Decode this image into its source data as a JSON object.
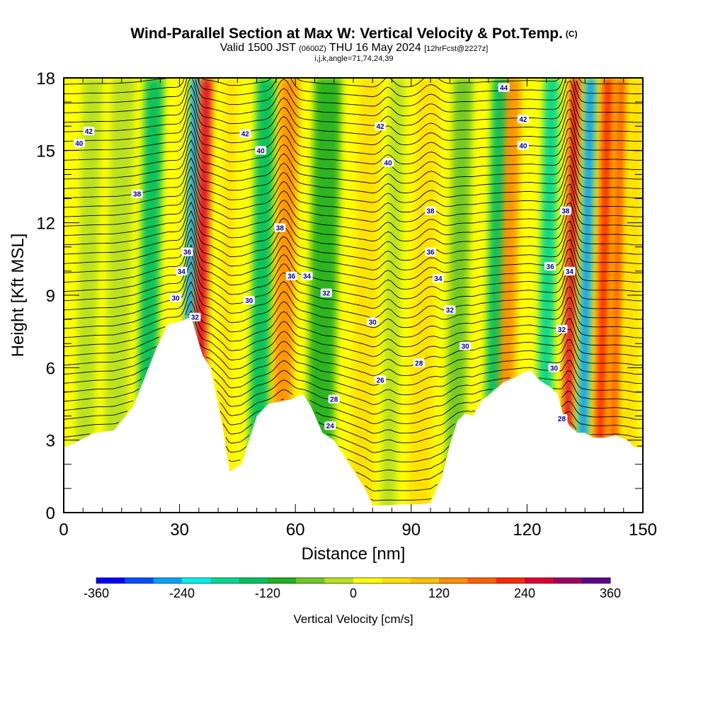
{
  "header": {
    "title": "Wind-Parallel Section at Max W: Vertical Velocity & Pot.Temp.",
    "copyright": "(C)",
    "valid_prefix": "Valid 1500 JST",
    "valid_zulu": "(0600Z)",
    "valid_date": "THU 16 May 2024",
    "forecast_tag": "[12hrFcst@2227z]",
    "indices": "i,j,k,angle=71,74,24,39"
  },
  "chart_data": {
    "type": "heatmap",
    "title": "Wind-Parallel Section at Max W: Vertical Velocity & Pot.Temp.",
    "xlabel": "Distance [nm]",
    "ylabel": "Height [Kft MSL]",
    "xlim": [
      0,
      150
    ],
    "ylim": [
      0,
      18
    ],
    "x_ticks": [
      "0",
      "30",
      "60",
      "90",
      "120",
      "150"
    ],
    "y_ticks": [
      "0",
      "3",
      "6",
      "9",
      "12",
      "15",
      "18"
    ],
    "colorbar": {
      "label": "Vertical Velocity [cm/s]",
      "range": [
        -360,
        360
      ],
      "tick_labels": [
        "-360",
        "-240",
        "-120",
        "0",
        "120",
        "240",
        "360"
      ],
      "colors": [
        "#0000ff",
        "#0050ff",
        "#00a0ff",
        "#00f0f0",
        "#00d890",
        "#00c060",
        "#20b020",
        "#70c828",
        "#b8e020",
        "#ffff00",
        "#ffe000",
        "#ffc000",
        "#ff9000",
        "#ff6000",
        "#ff2800",
        "#e00030",
        "#a00060",
        "#600090"
      ]
    },
    "terrain_top_kft": [
      [
        0,
        2.7
      ],
      [
        3,
        2.9
      ],
      [
        8,
        3.3
      ],
      [
        13,
        3.4
      ],
      [
        16,
        4.0
      ],
      [
        18,
        4.4
      ],
      [
        20,
        5.2
      ],
      [
        22,
        6.0
      ],
      [
        24,
        6.8
      ],
      [
        27,
        7.8
      ],
      [
        30,
        7.9
      ],
      [
        33,
        8.1
      ],
      [
        35,
        7.0
      ],
      [
        36,
        6.5
      ],
      [
        38,
        6.0
      ],
      [
        41,
        3.7
      ],
      [
        43,
        1.7
      ],
      [
        46,
        2.0
      ],
      [
        48,
        3.0
      ],
      [
        50,
        4.0
      ],
      [
        53,
        4.5
      ],
      [
        56,
        4.6
      ],
      [
        59,
        4.7
      ],
      [
        62,
        4.9
      ],
      [
        64,
        4.4
      ],
      [
        67,
        3.3
      ],
      [
        70,
        3.0
      ],
      [
        74,
        2.0
      ],
      [
        78,
        1.0
      ],
      [
        80,
        0.3
      ],
      [
        84,
        0.3
      ],
      [
        88,
        0.35
      ],
      [
        92,
        0.35
      ],
      [
        95,
        0.4
      ],
      [
        98,
        1.5
      ],
      [
        100,
        2.8
      ],
      [
        102,
        3.8
      ],
      [
        104,
        4.1
      ],
      [
        106,
        4.0
      ],
      [
        108,
        4.6
      ],
      [
        111,
        5.0
      ],
      [
        114,
        5.4
      ],
      [
        117,
        5.6
      ],
      [
        119,
        5.8
      ],
      [
        121,
        5.9
      ],
      [
        123,
        5.5
      ],
      [
        126,
        5.2
      ],
      [
        128,
        4.9
      ],
      [
        129,
        4.2
      ],
      [
        131,
        3.6
      ],
      [
        133,
        3.3
      ],
      [
        135,
        3.3
      ],
      [
        137,
        3.1
      ],
      [
        140,
        3.1
      ],
      [
        143,
        3.2
      ],
      [
        146,
        3.0
      ],
      [
        148,
        2.7
      ],
      [
        150,
        2.7
      ]
    ],
    "vertical_velocity_bands": [
      {
        "x": 5,
        "w": 5,
        "value": -20
      },
      {
        "x": 13,
        "w": 6,
        "value": -40
      },
      {
        "x": 21,
        "w": 5,
        "value": -140
      },
      {
        "x": 27,
        "w": 3,
        "value": 20
      },
      {
        "x": 31.5,
        "w": 2.5,
        "value": -280
      },
      {
        "x": 34.5,
        "w": 3,
        "value": 260
      },
      {
        "x": 41,
        "w": 3,
        "value": 40
      },
      {
        "x": 50,
        "w": 5,
        "value": -160
      },
      {
        "x": 56,
        "w": 5,
        "value": 150
      },
      {
        "x": 66,
        "w": 7,
        "value": -120
      },
      {
        "x": 77,
        "w": 6,
        "value": 60
      },
      {
        "x": 84,
        "w": 4,
        "value": -40
      },
      {
        "x": 92,
        "w": 6,
        "value": 60
      },
      {
        "x": 101,
        "w": 5,
        "value": -80
      },
      {
        "x": 111,
        "w": 5,
        "value": -160
      },
      {
        "x": 114,
        "w": 4,
        "value": 150
      },
      {
        "x": 124,
        "w": 4,
        "value": -180
      },
      {
        "x": 130,
        "w": 2.5,
        "value": 270
      },
      {
        "x": 134,
        "w": 3,
        "value": -270
      },
      {
        "x": 138.5,
        "w": 3,
        "value": 230
      },
      {
        "x": 142,
        "w": 3,
        "value": 160
      },
      {
        "x": 146,
        "w": 4,
        "value": 40
      }
    ],
    "theta_contours": {
      "label_values": [
        "24",
        "26",
        "28",
        "30",
        "32",
        "34",
        "36",
        "38",
        "40",
        "42",
        "44"
      ],
      "labels": [
        {
          "text": "42",
          "x": 6.5,
          "y": 15.8
        },
        {
          "text": "40",
          "x": 4,
          "y": 15.3
        },
        {
          "text": "38",
          "x": 19,
          "y": 13.2
        },
        {
          "text": "36",
          "x": 32,
          "y": 10.8
        },
        {
          "text": "34",
          "x": 30.5,
          "y": 10.0
        },
        {
          "text": "30",
          "x": 29,
          "y": 8.9
        },
        {
          "text": "32",
          "x": 34,
          "y": 8.1
        },
        {
          "text": "42",
          "x": 47,
          "y": 15.7
        },
        {
          "text": "40",
          "x": 51,
          "y": 15.0
        },
        {
          "text": "38",
          "x": 56,
          "y": 11.8
        },
        {
          "text": "36",
          "x": 59,
          "y": 9.8
        },
        {
          "text": "34",
          "x": 63,
          "y": 9.8
        },
        {
          "text": "32",
          "x": 68,
          "y": 9.1
        },
        {
          "text": "30",
          "x": 48,
          "y": 8.8
        },
        {
          "text": "42",
          "x": 82,
          "y": 16.0
        },
        {
          "text": "40",
          "x": 84,
          "y": 14.5
        },
        {
          "text": "38",
          "x": 95,
          "y": 12.5
        },
        {
          "text": "36",
          "x": 95,
          "y": 10.8
        },
        {
          "text": "34",
          "x": 97,
          "y": 9.7
        },
        {
          "text": "32",
          "x": 100,
          "y": 8.4
        },
        {
          "text": "30",
          "x": 80,
          "y": 7.9
        },
        {
          "text": "30",
          "x": 104,
          "y": 6.9
        },
        {
          "text": "28",
          "x": 92,
          "y": 6.2
        },
        {
          "text": "26",
          "x": 82,
          "y": 5.5
        },
        {
          "text": "28",
          "x": 70,
          "y": 4.7
        },
        {
          "text": "24",
          "x": 69,
          "y": 3.6
        },
        {
          "text": "44",
          "x": 114,
          "y": 17.6
        },
        {
          "text": "42",
          "x": 119,
          "y": 16.3
        },
        {
          "text": "40",
          "x": 119,
          "y": 15.2
        },
        {
          "text": "38",
          "x": 130,
          "y": 12.5
        },
        {
          "text": "36",
          "x": 126,
          "y": 10.2
        },
        {
          "text": "34",
          "x": 131,
          "y": 10.0
        },
        {
          "text": "32",
          "x": 129,
          "y": 7.6
        },
        {
          "text": "30",
          "x": 127,
          "y": 6.0
        },
        {
          "text": "28",
          "x": 129,
          "y": 3.9
        }
      ]
    }
  },
  "colors": {
    "background": "#ffffff",
    "frame": "#000000",
    "terrain": "#ffffff",
    "contour": "#000000"
  }
}
